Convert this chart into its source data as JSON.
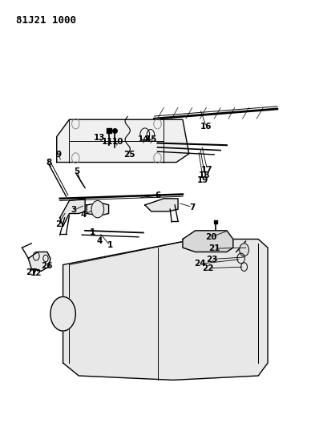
{
  "title": "81J21 1000",
  "bg_color": "#ffffff",
  "line_color": "#000000",
  "title_fontsize": 9,
  "label_fontsize": 7.5,
  "figsize": [
    3.93,
    5.33
  ],
  "dpi": 100
}
